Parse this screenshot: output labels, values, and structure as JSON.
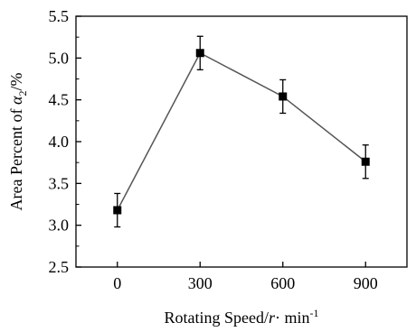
{
  "chart_data": {
    "type": "line",
    "x": [
      0,
      300,
      600,
      900
    ],
    "series": [
      {
        "values": [
          3.18,
          5.06,
          4.54,
          3.76
        ],
        "error": [
          0.2,
          0.2,
          0.2,
          0.2
        ]
      }
    ],
    "x_ticks": [
      0,
      300,
      600,
      900
    ],
    "x_tick_labels": [
      "0",
      "300",
      "600",
      "900"
    ],
    "y_ticks": [
      2.5,
      3.0,
      3.5,
      4.0,
      4.5,
      5.0,
      5.5
    ],
    "y_tick_labels": [
      "2.5",
      "3.0",
      "3.5",
      "4.0",
      "4.5",
      "5.0",
      "5.5"
    ],
    "xlabel": {
      "main": "Rotating Speed/",
      "var": "r",
      "dot": "·",
      "unit": " min",
      "sup": "-1"
    },
    "ylabel": {
      "main": "Area Percent of ",
      "var": "α",
      "sub": "2",
      "unit": "/%"
    },
    "xlim": [
      -150,
      1050
    ],
    "ylim": [
      2.5,
      5.5
    ],
    "marker": "square",
    "line_color": "#555555",
    "marker_color": "#000000",
    "grid": false,
    "legend": "none"
  }
}
